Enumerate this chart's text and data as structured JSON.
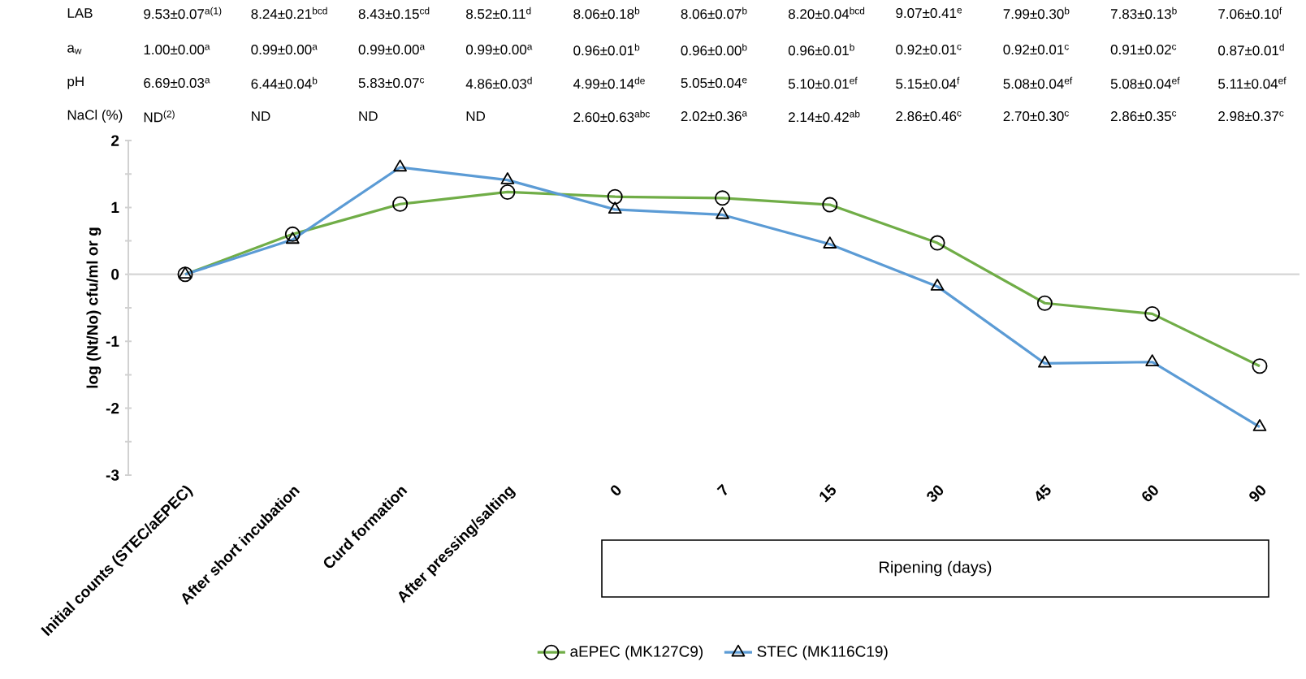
{
  "chart_data": {
    "type": "line",
    "ylabel": "log (Nt/No) cfu/ml or g",
    "categories": [
      "Initial counts (STEC/aEPEC)",
      "After short incubation",
      "Curd formation",
      "After pressing/salting",
      "0",
      "7",
      "15",
      "30",
      "45",
      "60",
      "90"
    ],
    "series": [
      {
        "name": "aEPEC (MK127C9)",
        "color": "#70ad47",
        "marker": "circle",
        "values": [
          0,
          0.6,
          1.05,
          1.23,
          1.16,
          1.14,
          1.04,
          0.47,
          -0.43,
          -0.59,
          -1.37
        ]
      },
      {
        "name": "STEC (MK116C19)",
        "color": "#5b9bd5",
        "marker": "triangle",
        "values": [
          0,
          0.52,
          1.6,
          1.41,
          0.97,
          0.89,
          0.45,
          -0.18,
          -1.33,
          -1.31,
          -2.28
        ]
      }
    ],
    "ylim": [
      -3,
      2
    ],
    "yticks": [
      -3,
      -2,
      -1,
      0,
      1,
      2
    ],
    "legend": "bottom",
    "grid": false,
    "ref_lines": [
      {
        "axis": "y",
        "value": 0,
        "color": "#d9d9d9"
      }
    ],
    "annotations": [
      "LAB",
      "9.53±0.07$^{a(1)}$",
      "8.24±0.21$^{bcd}$",
      "8.43±0.15$^{cd}$",
      "8.52±0.11$^{d}$",
      "8.06±0.18$^{b}$",
      "8.06±0.07$^{b}$",
      "8.20±0.04$^{bcd}$",
      "9.07±0.41$^{e}$",
      "7.99±0.30$^{b}$",
      "7.83±0.13$^{b}$",
      "7.06±0.10$^{f}$",
      "a$_{w}$",
      "1.00±0.00$^{a}$",
      "0.99±0.00$^{a}$",
      "0.99±0.00$^{a}$",
      "0.99±0.00$^{a}$",
      "0.96±0.01$^{b}$",
      "0.96±0.00$^{b}$",
      "0.96±0.01$^{b}$",
      "0.92±0.01$^{c}$",
      "0.92±0.01$^{c}$",
      "0.91±0.02$^{c}$",
      "0.87±0.01$^{d}$",
      "pH",
      "6.69±0.03$^{a}$",
      "6.44±0.04$^{b}$",
      "5.83±0.07$^{c}$",
      "4.86±0.03$^{d}$",
      "4.99±0.14$^{de}$",
      "5.05±0.04$^{e}$",
      "5.10±0.01$^{ef}$",
      "5.15±0.04$^{f}$",
      "5.08±0.04$^{ef}$",
      "5.08±0.04$^{ef}$",
      "5.11±0.04$^{ef}$",
      "NaCl (%)",
      "ND$^{(2)}$",
      "ND",
      "ND",
      "ND",
      "2.60±0.63$^{abc}$",
      "2.02±0.36$^{a}$",
      "2.14±0.42$^{ab}$",
      "2.86±0.46$^{c}$",
      "2.70±0.30$^{c}$",
      "2.86±0.35$^{c}$",
      "2.98±0.37$^{c}$",
      "Ripening (days)"
    ]
  }
}
